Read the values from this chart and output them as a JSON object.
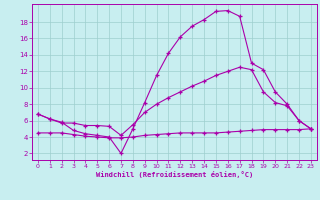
{
  "xlabel": "Windchill (Refroidissement éolien,°C)",
  "x_ticks": [
    0,
    1,
    2,
    3,
    4,
    5,
    6,
    7,
    8,
    9,
    10,
    11,
    12,
    13,
    14,
    15,
    16,
    17,
    18,
    19,
    20,
    21,
    22,
    23
  ],
  "y_ticks": [
    2,
    4,
    6,
    8,
    10,
    12,
    14,
    16,
    18
  ],
  "ylim": [
    1.2,
    20.2
  ],
  "xlim": [
    -0.5,
    23.5
  ],
  "bg_color": "#c8eef0",
  "line_color": "#aa00aa",
  "grid_color": "#9ecfce",
  "line1_x": [
    0,
    1,
    2,
    3,
    4,
    5,
    6,
    7,
    8,
    9,
    10,
    11,
    12,
    13,
    14,
    15,
    16,
    17,
    18,
    19,
    20,
    21,
    22,
    23
  ],
  "line1_y": [
    6.8,
    6.2,
    5.8,
    4.8,
    4.4,
    4.2,
    4.0,
    2.0,
    5.0,
    8.2,
    11.5,
    14.2,
    16.2,
    17.5,
    18.3,
    19.3,
    19.4,
    18.7,
    13.0,
    12.2,
    9.5,
    8.0,
    6.0,
    5.0
  ],
  "line2_x": [
    0,
    1,
    2,
    3,
    4,
    5,
    6,
    7,
    8,
    9,
    10,
    11,
    12,
    13,
    14,
    15,
    16,
    17,
    18,
    19,
    20,
    21,
    22,
    23
  ],
  "line2_y": [
    6.8,
    6.2,
    5.7,
    5.7,
    5.4,
    5.4,
    5.3,
    4.2,
    5.5,
    7.0,
    8.0,
    8.8,
    9.5,
    10.2,
    10.8,
    11.5,
    12.0,
    12.5,
    12.2,
    9.5,
    8.2,
    7.8,
    6.0,
    5.0
  ],
  "line3_x": [
    0,
    1,
    2,
    3,
    4,
    5,
    6,
    7,
    8,
    9,
    10,
    11,
    12,
    13,
    14,
    15,
    16,
    17,
    18,
    19,
    20,
    21,
    22,
    23
  ],
  "line3_y": [
    4.5,
    4.5,
    4.5,
    4.3,
    4.1,
    4.0,
    3.9,
    3.9,
    4.0,
    4.2,
    4.3,
    4.4,
    4.5,
    4.5,
    4.5,
    4.5,
    4.6,
    4.7,
    4.8,
    4.9,
    4.9,
    4.9,
    4.9,
    5.0
  ]
}
